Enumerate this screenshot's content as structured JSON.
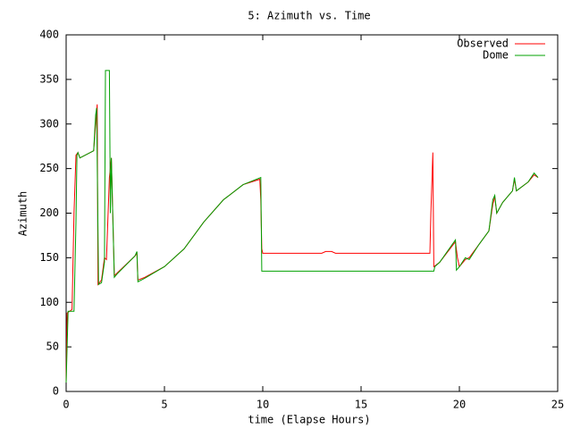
{
  "chart_data": {
    "type": "line",
    "title": "5: Azimuth vs. Time",
    "x_label": "time (Elapse Hours)",
    "y_label": "Azimuth",
    "xlim": [
      0,
      25
    ],
    "xticks": [
      0,
      5,
      10,
      15,
      20,
      25
    ],
    "ylim": [
      0,
      400
    ],
    "yticks": [
      0,
      50,
      100,
      150,
      200,
      250,
      300,
      350,
      400
    ],
    "legend": "top-right",
    "series": [
      {
        "name": "Observed",
        "color": "#ff0000",
        "x": [
          0,
          0.05,
          0.3,
          0.4,
          0.5,
          0.6,
          0.7,
          1.4,
          1.5,
          1.58,
          1.62,
          1.8,
          1.95,
          2.05,
          2.2,
          2.3,
          2.45,
          2.6,
          3.5,
          3.6,
          3.65,
          4.0,
          5,
          6,
          7,
          8,
          9,
          9.85,
          9.9,
          9.95,
          10,
          13,
          13.2,
          13.5,
          13.7,
          18.5,
          18.55,
          18.65,
          18.7,
          19,
          19.8,
          19.9,
          20,
          20.3,
          20.5,
          21,
          21.5,
          21.7,
          21.8,
          21.9,
          22.2,
          22.7,
          22.8,
          22.9,
          23.5,
          23.8,
          24
        ],
        "values": [
          10,
          88,
          92,
          200,
          265,
          268,
          262,
          270,
          300,
          322,
          120,
          125,
          150,
          148,
          240,
          262,
          130,
          133,
          152,
          155,
          125,
          128,
          140,
          160,
          190,
          215,
          232,
          238,
          215,
          160,
          155,
          155,
          157,
          157,
          155,
          155,
          200,
          268,
          140,
          145,
          168,
          150,
          140,
          148,
          150,
          165,
          180,
          210,
          218,
          200,
          212,
          225,
          238,
          225,
          235,
          243,
          240
        ]
      },
      {
        "name": "Dome",
        "color": "#00a000",
        "x": [
          0,
          0.1,
          0.4,
          0.5,
          0.55,
          0.6,
          0.7,
          1.4,
          1.5,
          1.55,
          1.65,
          1.8,
          1.95,
          2.0,
          2.2,
          2.25,
          2.3,
          2.45,
          2.6,
          3.5,
          3.6,
          3.65,
          4,
          5,
          6,
          7,
          8,
          9,
          9.9,
          9.95,
          18.7,
          18.75,
          19,
          19.8,
          19.85,
          20,
          20.3,
          20.5,
          21,
          21.5,
          21.7,
          21.8,
          21.9,
          22.2,
          22.7,
          22.8,
          22.9,
          23.5,
          23.8,
          24
        ],
        "values": [
          10,
          90,
          90,
          190,
          265,
          268,
          262,
          270,
          310,
          318,
          120,
          122,
          145,
          360,
          360,
          200,
          262,
          128,
          132,
          152,
          157,
          123,
          127,
          140,
          160,
          190,
          215,
          232,
          240,
          135,
          135,
          140,
          145,
          170,
          136,
          140,
          150,
          148,
          165,
          180,
          215,
          220,
          200,
          212,
          225,
          240,
          225,
          235,
          245,
          240
        ]
      }
    ]
  }
}
